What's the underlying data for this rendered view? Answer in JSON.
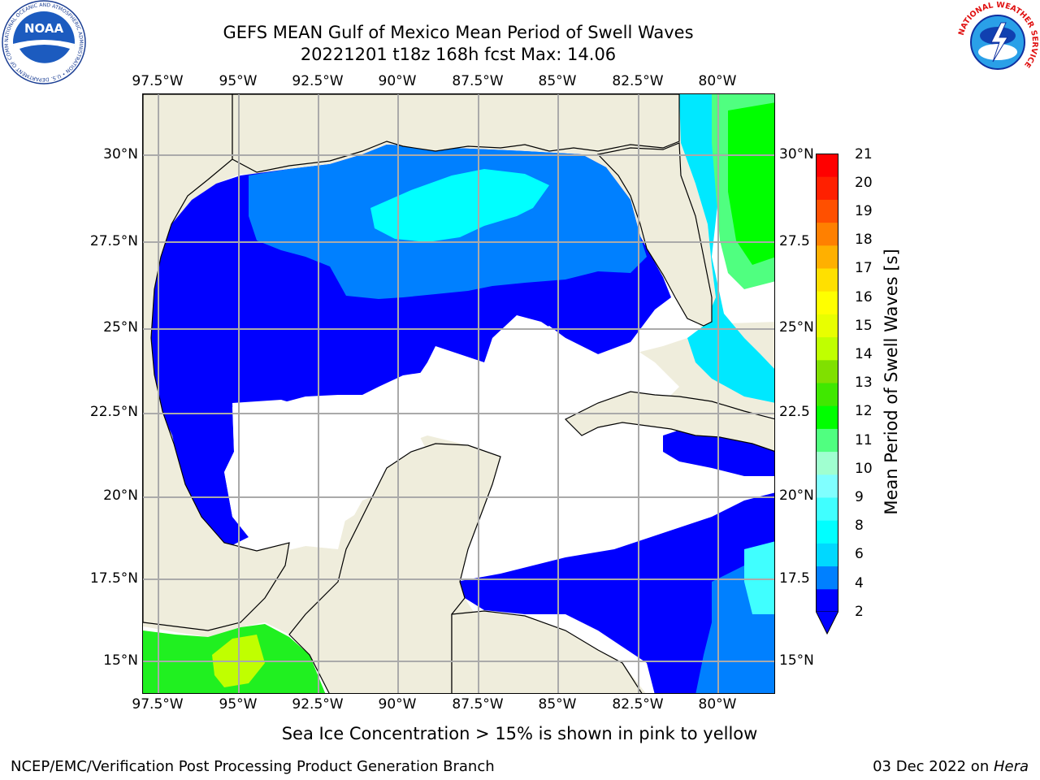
{
  "header": {
    "title_line1": "GEFS MEAN Gulf of Mexico Mean Period of Swell Waves",
    "title_line2": "20221201 t18z 168h fcst   Max: 14.06"
  },
  "logos": {
    "noaa": "NOAA",
    "noaa_ring": "NATIONAL OCEANIC AND ATMOSPHERIC ADMINISTRATION • U.S. DEPARTMENT OF COMMERCE",
    "nws_ring": "NATIONAL WEATHER SERVICE"
  },
  "map": {
    "lon_labels": [
      "97.5°W",
      "95°W",
      "92.5°W",
      "90°W",
      "87.5°W",
      "85°W",
      "82.5°W",
      "80°W"
    ],
    "lat_labels_left": [
      "30°N",
      "27.5°N",
      "25°N",
      "22.5°N",
      "20°N",
      "17.5°N",
      "15°N"
    ],
    "lat_labels_right": [
      "30°N",
      "27.5",
      "25°N",
      "22.5",
      "20°N",
      "17.5",
      "15°N"
    ],
    "lon_range": [
      -98,
      -78
    ],
    "lat_range": [
      14,
      32
    ],
    "land_color": "#efeddc",
    "grid": true
  },
  "colorbar": {
    "label": "Mean Period of Swell Waves [s]",
    "ticks": [
      "21",
      "20",
      "19",
      "18",
      "17",
      "16",
      "15",
      "14",
      "13",
      "12",
      "11",
      "10",
      "9",
      "8",
      "6",
      "4",
      "2"
    ],
    "colors": [
      "#0000ff",
      "#0080ff",
      "#00d8ff",
      "#00ffff",
      "#40ffff",
      "#80ffff",
      "#a0ffd0",
      "#50ff80",
      "#00ff00",
      "#40e800",
      "#80e000",
      "#c0ff00",
      "#e8ff00",
      "#ffff00",
      "#ffe000",
      "#ffb000",
      "#ff8000",
      "#ff5000",
      "#ff2000",
      "#ff0000"
    ]
  },
  "note": "Sea Ice Concentration > 15% is shown in pink to yellow",
  "footer": {
    "left": "NCEP/EMC/Verification Post Processing Product Generation Branch",
    "date": "03 Dec 2022 on ",
    "host": "Hera"
  }
}
